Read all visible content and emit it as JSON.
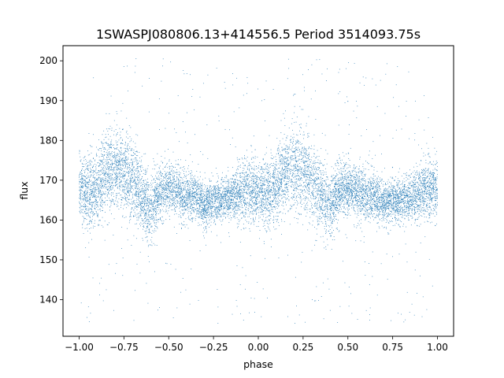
{
  "chart_data": {
    "type": "scatter",
    "title": "1SWASPJ080806.13+414556.5 Period 3514093.75s",
    "xlabel": "phase",
    "ylabel": "flux",
    "xlim": [
      -1.09,
      1.09
    ],
    "ylim": [
      130.8,
      203.8
    ],
    "xticks": [
      -1.0,
      -0.75,
      -0.5,
      -0.25,
      0.0,
      0.25,
      0.5,
      0.75,
      1.0
    ],
    "xtick_labels": [
      "−1.00",
      "−0.75",
      "−0.50",
      "−0.25",
      "0.00",
      "0.25",
      "0.50",
      "0.75",
      "1.00"
    ],
    "yticks": [
      140,
      150,
      160,
      170,
      180,
      190,
      200
    ],
    "ytick_labels": [
      "140",
      "150",
      "160",
      "170",
      "180",
      "190",
      "200"
    ],
    "grid": false,
    "legend": "none",
    "marker_color": "#1f77b4",
    "series": [
      {
        "x": [
          -1.0,
          -0.95,
          -0.9,
          -0.85,
          -0.8,
          -0.75,
          -0.7,
          -0.65,
          -0.6,
          -0.55,
          -0.5,
          -0.45,
          -0.4,
          -0.35,
          -0.3,
          -0.25,
          -0.2,
          -0.15,
          -0.1,
          -0.05,
          0.0,
          0.05,
          0.1,
          0.15,
          0.2,
          0.25,
          0.3,
          0.35,
          0.4,
          0.45,
          0.5,
          0.55,
          0.6,
          0.65,
          0.7,
          0.75,
          0.8,
          0.85,
          0.9,
          0.95,
          1.0
        ],
        "y": [
          168,
          167,
          168,
          172,
          173,
          172,
          170,
          166,
          163,
          167,
          168,
          167,
          166,
          166,
          164,
          165,
          165,
          166,
          167,
          168,
          168,
          167,
          168,
          172,
          173,
          172,
          170,
          166,
          163,
          167,
          168,
          167,
          166,
          166,
          164,
          165,
          165,
          166,
          167,
          168,
          168
        ],
        "spread": [
          7,
          8,
          8,
          9,
          9,
          9,
          9,
          8,
          8,
          6,
          6,
          6,
          6,
          5,
          5,
          5,
          5,
          5,
          6,
          7,
          7,
          8,
          8,
          9,
          9,
          9,
          9,
          8,
          8,
          6,
          6,
          6,
          6,
          5,
          5,
          5,
          5,
          5,
          6,
          7,
          7
        ]
      }
    ]
  }
}
